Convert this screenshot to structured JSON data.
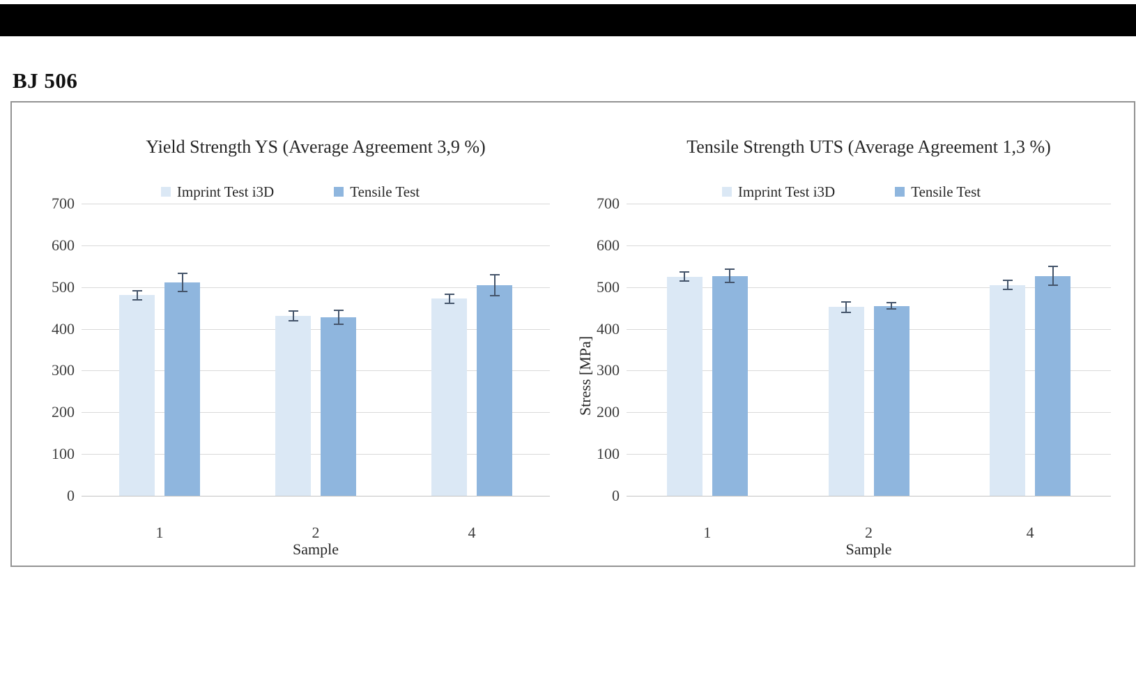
{
  "page_title": "BJ 506",
  "colors": {
    "series_imprint": "#dbe8f5",
    "series_tensile": "#8fb6de",
    "error_bar": "#44546a",
    "gridline": "#d9d9d9",
    "axis_line": "#c3c3c3",
    "panel_border": "#939393",
    "text": "#262626",
    "top_bar": "#000000"
  },
  "chart_data": [
    {
      "type": "bar",
      "title": "Yield Strength YS (Average Agreement 3,9 %)",
      "categories": [
        "1",
        "2",
        "4"
      ],
      "xlabel": "Sample",
      "ylabel": "",
      "ylim": [
        0,
        700
      ],
      "ytick_step": 100,
      "yticks": [
        0,
        100,
        200,
        300,
        400,
        500,
        600,
        700
      ],
      "grid": true,
      "legend_position": "top",
      "series": [
        {
          "name": "Imprint Test i3D",
          "values": [
            481,
            431,
            472
          ],
          "errors": [
            11,
            11,
            11
          ]
        },
        {
          "name": "Tensile Test",
          "values": [
            511,
            428,
            504
          ],
          "errors": [
            22,
            17,
            25
          ]
        }
      ]
    },
    {
      "type": "bar",
      "title": "Tensile Strength UTS (Average Agreement 1,3 %)",
      "categories": [
        "1",
        "2",
        "4"
      ],
      "xlabel": "Sample",
      "ylabel": "Stress [MPa]",
      "ylim": [
        0,
        700
      ],
      "ytick_step": 100,
      "yticks": [
        0,
        100,
        200,
        300,
        400,
        500,
        600,
        700
      ],
      "grid": true,
      "legend_position": "top",
      "series": [
        {
          "name": "Imprint Test i3D",
          "values": [
            525,
            452,
            505
          ],
          "errors": [
            11,
            12,
            11
          ]
        },
        {
          "name": "Tensile Test",
          "values": [
            527,
            455,
            527
          ],
          "errors": [
            16,
            7,
            23
          ]
        }
      ]
    }
  ]
}
